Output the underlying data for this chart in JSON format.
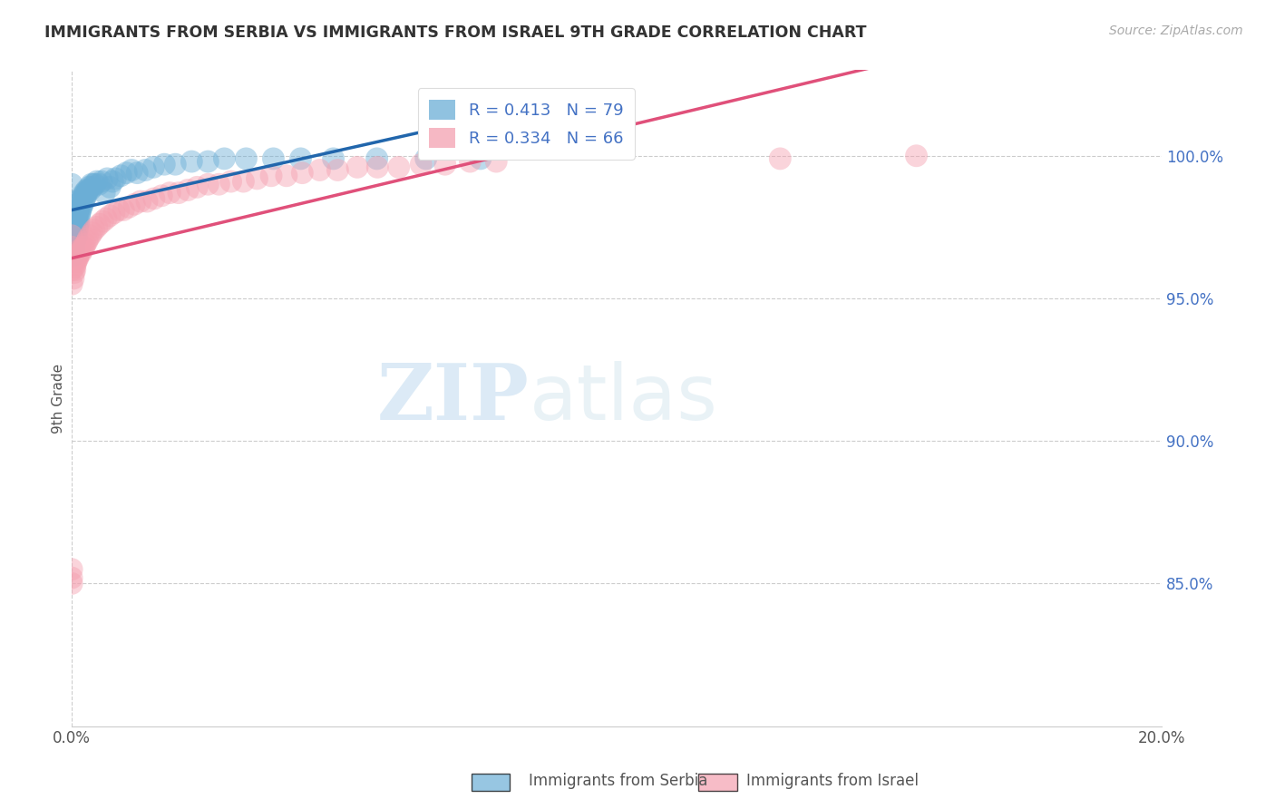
{
  "title": "IMMIGRANTS FROM SERBIA VS IMMIGRANTS FROM ISRAEL 9TH GRADE CORRELATION CHART",
  "source": "Source: ZipAtlas.com",
  "ylabel": "9th Grade",
  "y_ticks": [
    0.85,
    0.9,
    0.95,
    1.0
  ],
  "y_tick_labels": [
    "85.0%",
    "90.0%",
    "95.0%",
    "100.0%"
  ],
  "xlim": [
    0.0,
    0.2
  ],
  "ylim": [
    0.8,
    1.03
  ],
  "serbia_R": 0.413,
  "serbia_N": 79,
  "israel_R": 0.334,
  "israel_N": 66,
  "serbia_color": "#6baed6",
  "israel_color": "#f4a0b0",
  "serbia_line_color": "#2166ac",
  "israel_line_color": "#e0507a",
  "watermark_zip": "ZIP",
  "watermark_atlas": "atlas",
  "serbia_x": [
    0.0,
    0.0,
    0.0,
    0.0,
    0.0,
    0.0,
    0.0,
    0.0,
    0.0002,
    0.0003,
    0.0003,
    0.0004,
    0.0004,
    0.0005,
    0.0005,
    0.0006,
    0.0006,
    0.0007,
    0.0007,
    0.0008,
    0.0008,
    0.0009,
    0.0009,
    0.001,
    0.001,
    0.0011,
    0.0011,
    0.0012,
    0.0012,
    0.0013,
    0.0014,
    0.0015,
    0.0015,
    0.0016,
    0.0017,
    0.0018,
    0.0019,
    0.002,
    0.0021,
    0.0022,
    0.0023,
    0.0024,
    0.0025,
    0.0026,
    0.0027,
    0.0028,
    0.003,
    0.0032,
    0.0034,
    0.0036,
    0.0038,
    0.004,
    0.0043,
    0.0046,
    0.005,
    0.0055,
    0.006,
    0.0065,
    0.007,
    0.0075,
    0.008,
    0.009,
    0.01,
    0.011,
    0.012,
    0.0135,
    0.015,
    0.017,
    0.019,
    0.022,
    0.025,
    0.028,
    0.032,
    0.037,
    0.042,
    0.048,
    0.056,
    0.065,
    0.075
  ],
  "serbia_y": [
    0.965,
    0.97,
    0.972,
    0.975,
    0.978,
    0.98,
    0.984,
    0.99,
    0.965,
    0.967,
    0.97,
    0.968,
    0.972,
    0.97,
    0.974,
    0.971,
    0.976,
    0.972,
    0.977,
    0.973,
    0.978,
    0.972,
    0.976,
    0.974,
    0.978,
    0.975,
    0.98,
    0.976,
    0.981,
    0.977,
    0.979,
    0.98,
    0.983,
    0.981,
    0.984,
    0.982,
    0.985,
    0.983,
    0.986,
    0.984,
    0.987,
    0.985,
    0.987,
    0.986,
    0.988,
    0.987,
    0.988,
    0.989,
    0.988,
    0.99,
    0.989,
    0.99,
    0.99,
    0.991,
    0.99,
    0.991,
    0.987,
    0.992,
    0.989,
    0.991,
    0.992,
    0.993,
    0.994,
    0.995,
    0.994,
    0.995,
    0.996,
    0.997,
    0.997,
    0.998,
    0.998,
    0.999,
    0.999,
    0.999,
    0.999,
    0.999,
    0.999,
    0.999,
    0.999
  ],
  "israel_x": [
    0.0,
    0.0,
    0.0,
    0.0,
    0.0,
    0.0,
    0.0,
    0.0,
    0.0003,
    0.0004,
    0.0005,
    0.0006,
    0.0007,
    0.0008,
    0.001,
    0.0011,
    0.0012,
    0.0014,
    0.0015,
    0.0017,
    0.0019,
    0.0021,
    0.0023,
    0.0025,
    0.0028,
    0.003,
    0.0034,
    0.0037,
    0.0041,
    0.0046,
    0.0051,
    0.0057,
    0.0063,
    0.007,
    0.0078,
    0.0086,
    0.0095,
    0.0105,
    0.0115,
    0.0126,
    0.0138,
    0.0151,
    0.0165,
    0.018,
    0.0196,
    0.0213,
    0.023,
    0.025,
    0.027,
    0.0292,
    0.0315,
    0.034,
    0.0366,
    0.0394,
    0.0423,
    0.0455,
    0.0488,
    0.0524,
    0.0561,
    0.06,
    0.0641,
    0.0685,
    0.0731,
    0.0779,
    0.13,
    0.155
  ],
  "israel_y": [
    0.85,
    0.852,
    0.855,
    0.955,
    0.96,
    0.964,
    0.968,
    0.972,
    0.957,
    0.959,
    0.961,
    0.96,
    0.962,
    0.963,
    0.964,
    0.964,
    0.965,
    0.966,
    0.967,
    0.966,
    0.967,
    0.968,
    0.968,
    0.969,
    0.97,
    0.971,
    0.972,
    0.973,
    0.974,
    0.975,
    0.976,
    0.977,
    0.978,
    0.979,
    0.98,
    0.981,
    0.981,
    0.982,
    0.983,
    0.984,
    0.984,
    0.985,
    0.986,
    0.987,
    0.987,
    0.988,
    0.989,
    0.99,
    0.99,
    0.991,
    0.991,
    0.992,
    0.993,
    0.993,
    0.994,
    0.995,
    0.995,
    0.996,
    0.996,
    0.996,
    0.997,
    0.997,
    0.998,
    0.998,
    0.999,
    1.0
  ]
}
